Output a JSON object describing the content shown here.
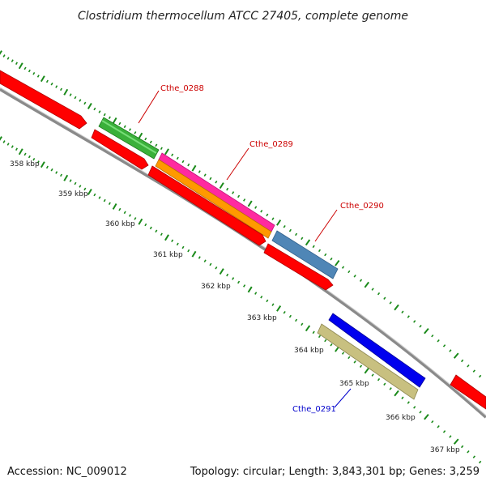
{
  "title": "Clostridium thermocellum ATCC 27405, complete genome",
  "accession": "Accession: NC_009012",
  "summary": "Topology: circular; Length: 3,843,301 bp; Genes: 3,259",
  "colors": {
    "backbone": "#8a8a8a",
    "dots": "#1a8a1a",
    "red": "#ff0000",
    "green": "#33bb33",
    "magenta": "#ff2aa0",
    "orange": "#ff9900",
    "steelblue": "#4f86b6",
    "blue": "#0000ee",
    "khaki": "#c8c080",
    "red_label": "#cc0000",
    "blue_label": "#0000cc"
  },
  "kbp_labels": [
    "358 kbp",
    "359 kbp",
    "360 kbp",
    "361 kbp",
    "362 kbp",
    "363 kbp",
    "364 kbp",
    "365 kbp",
    "366 kbp",
    "367 kbp"
  ],
  "gene_labels": [
    {
      "text": "Cthe_0288",
      "color": "red_label"
    },
    {
      "text": "Cthe_0289",
      "color": "red_label"
    },
    {
      "text": "Cthe_0290",
      "color": "red_label"
    },
    {
      "text": "Cthe_0291",
      "color": "blue_label"
    }
  ]
}
